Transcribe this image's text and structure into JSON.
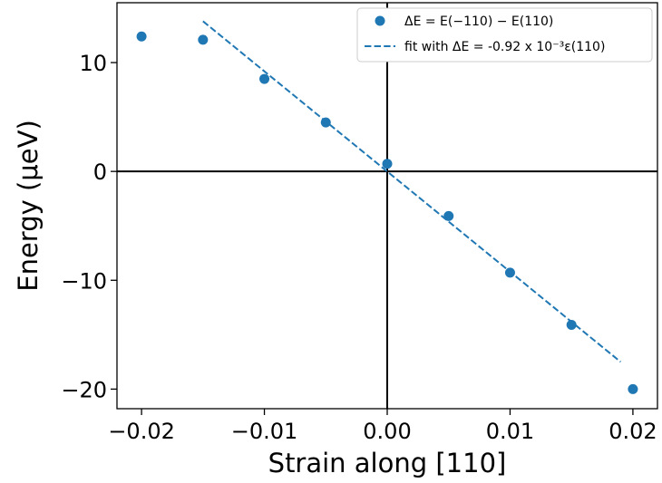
{
  "chart_data": {
    "type": "scatter",
    "title": "",
    "xlabel": "Strain along [110]",
    "ylabel": "Energy (μeV)",
    "xlim": [
      -0.022,
      0.022
    ],
    "ylim": [
      -21.8,
      15.5
    ],
    "x_ticks": [
      -0.02,
      -0.01,
      0.0,
      0.01,
      0.02
    ],
    "x_tick_labels": [
      "−0.02",
      "−0.01",
      "0.00",
      "0.01",
      "0.02"
    ],
    "y_ticks": [
      -20,
      -10,
      0,
      10
    ],
    "y_tick_labels": [
      "−20",
      "−10",
      "0",
      "10"
    ],
    "grid": false,
    "legend_position": "top-right",
    "zero_lines": true,
    "color": "#1f77b4",
    "series": [
      {
        "name": "ΔE = E(−110) − E(110)",
        "type": "scatter",
        "x": [
          -0.02,
          -0.015,
          -0.01,
          -0.005,
          0.0,
          0.005,
          0.01,
          0.015,
          0.02
        ],
        "y": [
          12.4,
          12.1,
          8.5,
          4.5,
          0.7,
          -4.1,
          -9.3,
          -14.1,
          -20.0
        ]
      },
      {
        "name": "fit with ΔE = -0.92 x 10⁻³ε(110)",
        "type": "line",
        "style": "dashed",
        "x": [
          -0.015,
          0.019
        ],
        "y": [
          13.8,
          -17.5
        ]
      }
    ]
  }
}
